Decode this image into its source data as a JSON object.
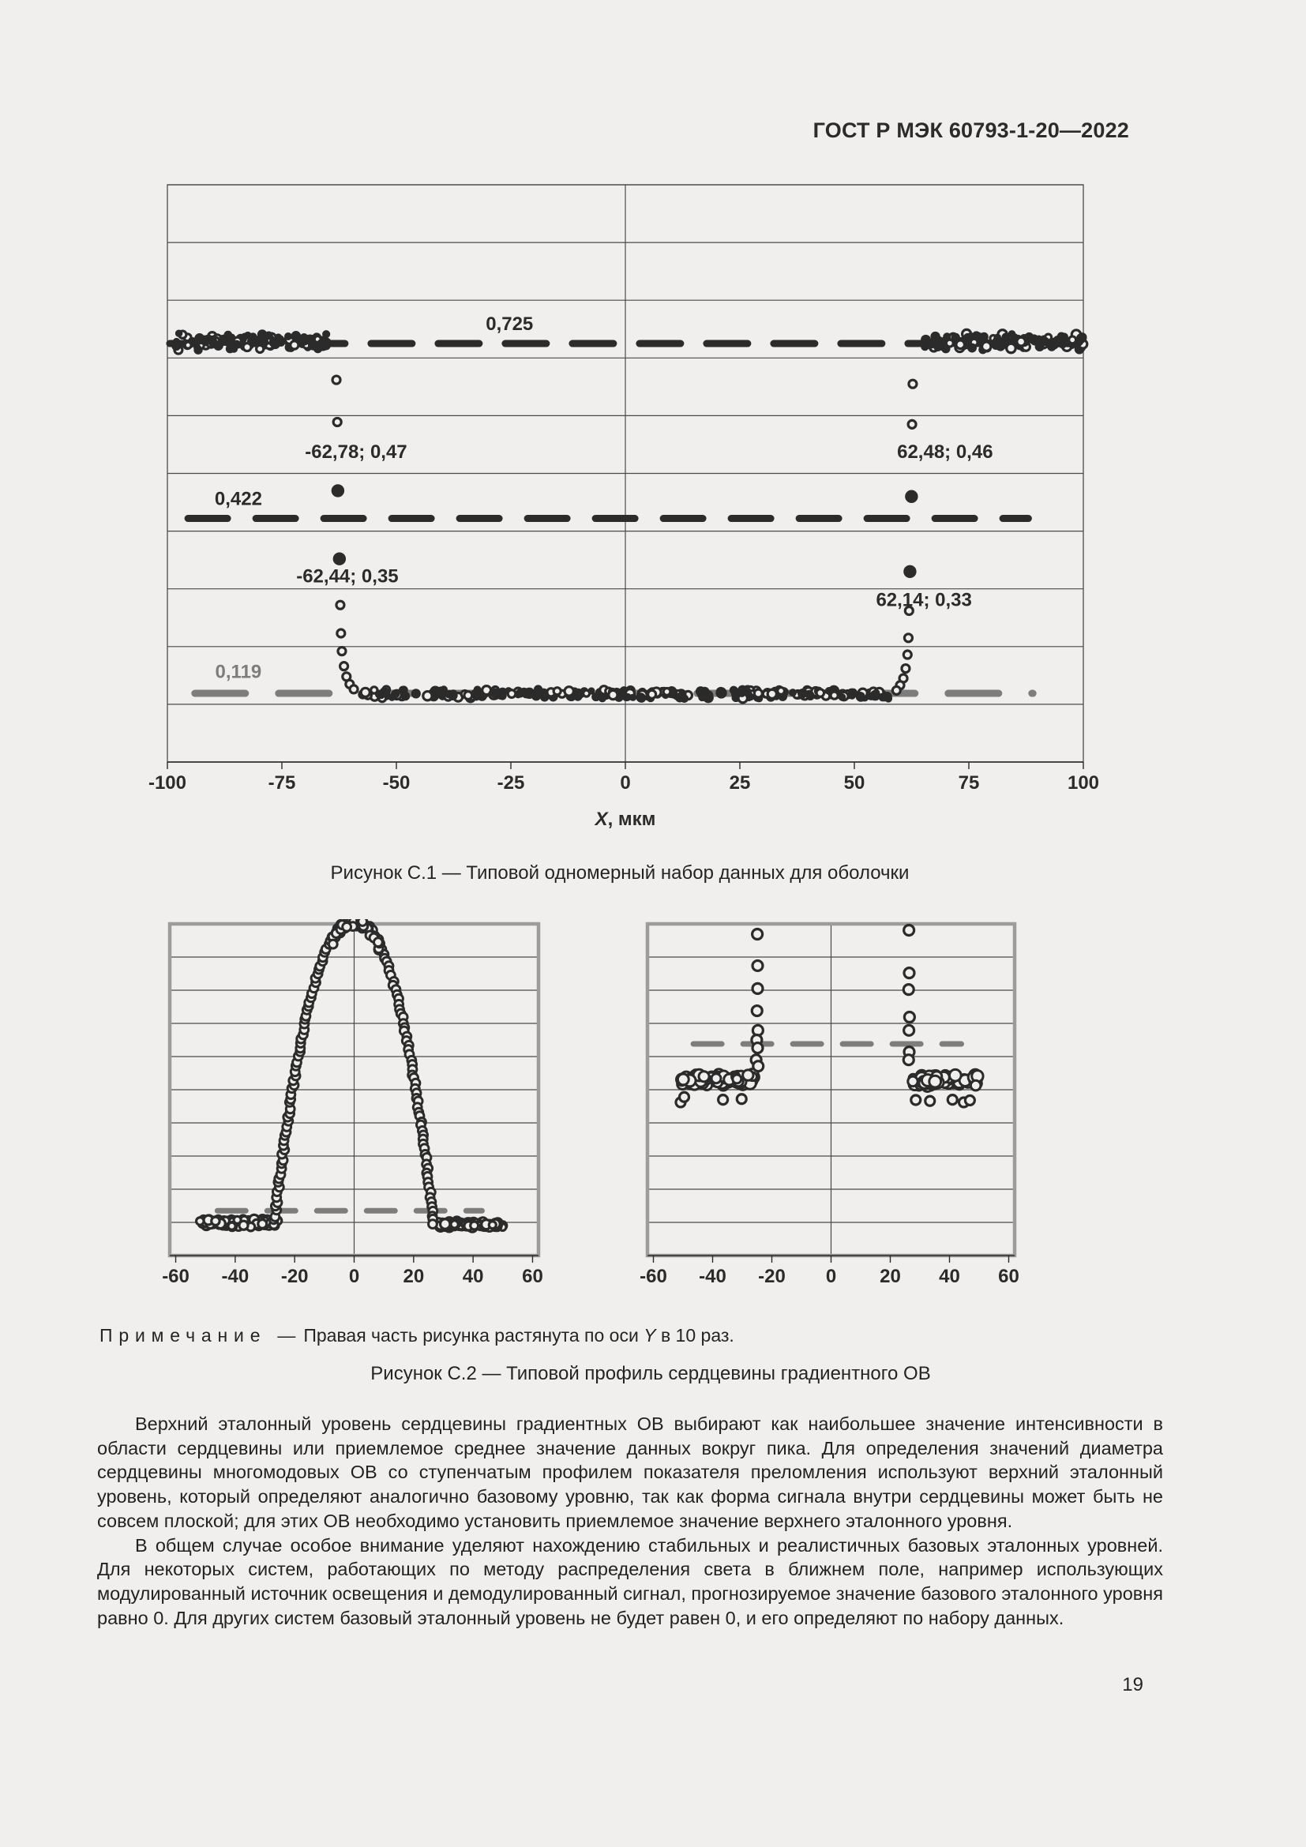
{
  "page": {
    "number": "19"
  },
  "header": {
    "title": "ГОСТ Р МЭК 60793-1-20—2022"
  },
  "figures": {
    "c1": {
      "caption": "Рисунок С.1 — Типовой одномерный набор данных для оболочки"
    },
    "c2": {
      "caption": "Рисунок С.2 — Типовой профиль сердцевины градиентного ОВ",
      "note_label": "Примечание",
      "note_dash": "—",
      "note_before_italic": "Правая часть рисунка растянута по оси ",
      "note_italic": "Y",
      "note_after_italic": " в 10 раз."
    }
  },
  "body": {
    "paragraphs": [
      "Верхний эталонный уровень сердцевины градиентных ОВ выбирают как наибольшее значение интенсивности в области сердцевины или приемлемое среднее значение данных вокруг пика. Для определения значений диаметра сердцевины многомодовых ОВ со ступенчатым профилем показателя преломления используют верхний эталонный уровень, который определяют аналогично базовому уровню, так как форма сигнала внутри сердцевины может быть не совсем плоской; для этих ОВ необходимо установить приемлемое значение верхнего эталонного уровня.",
      "В общем случае особое внимание уделяют нахождению стабильных и реалистичных базовых эталонных уровней. Для некоторых систем, работающих по методу распределения света в ближнем поле, например использующих модулированный источник освещения и демодулированный сигнал, прогнозируемое значение базового эталонного уровня равно 0. Для других систем базовый эталонный уровень не будет равен 0, и его определяют по набору данных."
    ]
  },
  "chart_data": [
    {
      "id": "chart-c1",
      "type": "scatter",
      "title": "Типовой одномерный набор данных для оболочки",
      "xlabel_italic": "X",
      "xlabel_rest": ", мкм",
      "x_range": [
        -100,
        100
      ],
      "y_range": [
        0,
        1
      ],
      "x_ticks": [
        -100,
        -75,
        -50,
        -25,
        0,
        25,
        50,
        75,
        100
      ],
      "y_grid_step": 0.1,
      "v_gridlines": [
        0
      ],
      "grid_on": true,
      "legend": "none",
      "ink": "#2b2b2b",
      "bg": "#f0efed",
      "grid_color": "#4a4a4a",
      "frame": {
        "stroke": "#4a4a4a",
        "width": 1.3
      },
      "margins": {
        "l": 62,
        "t": 6,
        "r": 48,
        "b": 103
      },
      "tick_size": 24,
      "label_size": 24,
      "ref_lines": [
        {
          "y": 0.725,
          "x1": -99.5,
          "x2": 99.5,
          "color": "#2b2b2b",
          "width": 9,
          "dash": [
            52,
            33
          ]
        },
        {
          "y": 0.422,
          "x1": -95.5,
          "x2": 88,
          "color": "#2b2b2b",
          "width": 9,
          "dash": [
            50,
            36
          ]
        },
        {
          "y": 0.119,
          "x1": -94,
          "x2": 89,
          "color": "#7d7d7d",
          "width": 9,
          "dash": [
            64,
            42
          ]
        }
      ],
      "labels": [
        {
          "x": -25.3,
          "y": 0.748,
          "text": "0,725",
          "color": "#2b2b2b"
        },
        {
          "x": -84.5,
          "y": 0.445,
          "text": "0,422",
          "color": "#2b2b2b"
        },
        {
          "x": -84.5,
          "y": 0.146,
          "text": "0,119",
          "color": "#7d7d7d"
        },
        {
          "x": -58.8,
          "y": 0.527,
          "text": "-62,78;  0,47",
          "color": "#2b2b2b"
        },
        {
          "x": 69.8,
          "y": 0.527,
          "text": "62,48;  0,46",
          "color": "#2b2b2b"
        },
        {
          "x": -60.7,
          "y": 0.311,
          "text": "-62,44;  0,35",
          "color": "#2b2b2b"
        },
        {
          "x": 65.2,
          "y": 0.27,
          "text": "62,14;  0,33",
          "color": "#2b2b2b"
        }
      ],
      "clusters": [
        {
          "x1": -100,
          "x2": -65.2,
          "level": 0.728,
          "jitter": 0.015,
          "n": 130,
          "r": 4.6,
          "style": "mixed",
          "seed": 11
        },
        {
          "x1": 65.2,
          "x2": 100,
          "level": 0.728,
          "jitter": 0.015,
          "n": 130,
          "r": 4.6,
          "style": "mixed",
          "seed": 22
        },
        {
          "x1": -57.5,
          "x2": 57.5,
          "level": 0.118,
          "jitter": 0.009,
          "n": 270,
          "r": 4.6,
          "style": "mixed",
          "seed": 33
        }
      ],
      "points": [
        {
          "x": -63.1,
          "y": 0.662,
          "open": true,
          "r": 5
        },
        {
          "x": -62.9,
          "y": 0.589,
          "open": true,
          "r": 5
        },
        {
          "x": -62.78,
          "y": 0.47,
          "open": false,
          "r": 7.5
        },
        {
          "x": -62.44,
          "y": 0.352,
          "open": false,
          "r": 7.5
        },
        {
          "x": -62.25,
          "y": 0.272,
          "open": true,
          "r": 5
        },
        {
          "x": -62.1,
          "y": 0.223,
          "open": true,
          "r": 5
        },
        {
          "x": -61.9,
          "y": 0.192,
          "open": true,
          "r": 5
        },
        {
          "x": -61.45,
          "y": 0.166,
          "open": true,
          "r": 5
        },
        {
          "x": -60.9,
          "y": 0.148,
          "open": true,
          "r": 5
        },
        {
          "x": -60.2,
          "y": 0.135,
          "open": true,
          "r": 5
        },
        {
          "x": -59.3,
          "y": 0.126,
          "open": true,
          "r": 5
        },
        {
          "x": 62.75,
          "y": 0.655,
          "open": true,
          "r": 5
        },
        {
          "x": 62.6,
          "y": 0.585,
          "open": true,
          "r": 5
        },
        {
          "x": 62.48,
          "y": 0.46,
          "open": false,
          "r": 7.5
        },
        {
          "x": 62.14,
          "y": 0.33,
          "open": false,
          "r": 7.5
        },
        {
          "x": 61.95,
          "y": 0.262,
          "open": true,
          "r": 5
        },
        {
          "x": 61.8,
          "y": 0.215,
          "open": true,
          "r": 5
        },
        {
          "x": 61.6,
          "y": 0.186,
          "open": true,
          "r": 5
        },
        {
          "x": 61.2,
          "y": 0.162,
          "open": true,
          "r": 5
        },
        {
          "x": 60.7,
          "y": 0.145,
          "open": true,
          "r": 5
        },
        {
          "x": 60.0,
          "y": 0.133,
          "open": true,
          "r": 5
        },
        {
          "x": 59.2,
          "y": 0.124,
          "open": true,
          "r": 5
        }
      ]
    },
    {
      "id": "chart-c2l",
      "type": "scatter",
      "title": "Типовой профиль сердцевины градиентного ОВ (левая часть)",
      "x_range": [
        -62,
        62
      ],
      "y_range": [
        0,
        1
      ],
      "x_ticks": [
        -60,
        -40,
        -20,
        0,
        20,
        40,
        60
      ],
      "y_grid_step": 0.1,
      "v_gridlines": [
        0
      ],
      "grid_on": true,
      "legend": "none",
      "ink": "#2b2b2b",
      "bg": "#f0efed",
      "grid_color": "#4a4a4a",
      "frame": {
        "stroke": "#9c9c9c",
        "width": 4.5
      },
      "margins": {
        "l": 47,
        "t": 6,
        "r": 26,
        "b": 44
      },
      "tick_size": 24,
      "label_size": 24,
      "ref_lines": [
        {
          "y": 0.135,
          "x1": -46,
          "x2": 43,
          "color": "#7d7d7d",
          "width": 7,
          "dash": [
            36,
            27
          ]
        }
      ],
      "clusters": [
        {
          "x1": -52,
          "x2": -25.5,
          "level": 0.098,
          "jitter": 0.013,
          "n": 120,
          "r": 5,
          "style": "open-dense",
          "seed": 44
        },
        {
          "x1": 28,
          "x2": 50,
          "level": 0.093,
          "jitter": 0.011,
          "n": 100,
          "r": 5,
          "style": "open-dense",
          "seed": 55
        }
      ],
      "bell": {
        "half_width": 26.8,
        "base": 0.092,
        "peak": 1.015,
        "alpha": 2.15,
        "r": 5.4,
        "seed": 66,
        "peak_extra": 50
      },
      "points": []
    },
    {
      "id": "chart-c2r",
      "type": "scatter",
      "title": "Типовой профиль сердцевины градиентного ОВ (правая часть, ось Y растянута в 10 раз)",
      "x_range": [
        -62,
        62
      ],
      "y_range": [
        0,
        1
      ],
      "x_ticks": [
        -60,
        -40,
        -20,
        0,
        20,
        40,
        60
      ],
      "y_grid_step": 0.1,
      "v_gridlines": [
        0
      ],
      "grid_on": true,
      "legend": "none",
      "ink": "#2b2b2b",
      "bg": "#f0efed",
      "grid_color": "#4a4a4a",
      "frame": {
        "stroke": "#9c9c9c",
        "width": 4.5
      },
      "margins": {
        "l": 47,
        "t": 6,
        "r": 28,
        "b": 44
      },
      "tick_size": 24,
      "label_size": 24,
      "ref_lines": [
        {
          "y": 0.638,
          "x1": -46.5,
          "x2": 44,
          "color": "#7d7d7d",
          "width": 7,
          "dash": [
            36,
            27
          ]
        }
      ],
      "clusters": [
        {
          "x1": -51.5,
          "x2": -26,
          "level": 0.53,
          "jitter": 0.022,
          "n": 88,
          "r": 6,
          "style": "open",
          "seed": 77
        },
        {
          "x1": 27.5,
          "x2": 49.5,
          "level": 0.528,
          "jitter": 0.02,
          "n": 78,
          "r": 6,
          "style": "open",
          "seed": 88
        }
      ],
      "points": [
        {
          "x": -24.9,
          "y": 0.969,
          "open": true,
          "r": 6.5
        },
        {
          "x": -24.8,
          "y": 0.874,
          "open": true,
          "r": 6.5
        },
        {
          "x": -24.8,
          "y": 0.805,
          "open": true,
          "r": 6.5
        },
        {
          "x": -25.0,
          "y": 0.738,
          "open": true,
          "r": 6.5
        },
        {
          "x": -24.7,
          "y": 0.679,
          "open": true,
          "r": 6.5
        },
        {
          "x": -25.1,
          "y": 0.65,
          "open": true,
          "r": 6.5
        },
        {
          "x": -24.8,
          "y": 0.626,
          "open": true,
          "r": 6.5
        },
        {
          "x": -25.3,
          "y": 0.59,
          "open": true,
          "r": 6.5
        },
        {
          "x": -24.6,
          "y": 0.571,
          "open": true,
          "r": 6.5
        },
        {
          "x": 26.3,
          "y": 0.981,
          "open": true,
          "r": 6.5
        },
        {
          "x": 26.4,
          "y": 0.852,
          "open": true,
          "r": 6.5
        },
        {
          "x": 26.2,
          "y": 0.802,
          "open": true,
          "r": 6.5
        },
        {
          "x": 26.5,
          "y": 0.719,
          "open": true,
          "r": 6.5
        },
        {
          "x": 26.3,
          "y": 0.679,
          "open": true,
          "r": 6.5
        },
        {
          "x": 26.4,
          "y": 0.614,
          "open": true,
          "r": 6.5
        },
        {
          "x": 26.2,
          "y": 0.59,
          "open": true,
          "r": 6.5
        },
        {
          "x": -50.8,
          "y": 0.462,
          "open": true,
          "r": 6
        },
        {
          "x": -49.6,
          "y": 0.478,
          "open": true,
          "r": 6
        },
        {
          "x": -36.5,
          "y": 0.47,
          "open": true,
          "r": 6
        },
        {
          "x": -30.2,
          "y": 0.472,
          "open": true,
          "r": 6
        },
        {
          "x": 28.6,
          "y": 0.469,
          "open": true,
          "r": 6
        },
        {
          "x": 33.4,
          "y": 0.466,
          "open": true,
          "r": 6
        },
        {
          "x": 41.0,
          "y": 0.47,
          "open": true,
          "r": 6
        },
        {
          "x": 44.8,
          "y": 0.462,
          "open": true,
          "r": 6
        },
        {
          "x": 46.9,
          "y": 0.468,
          "open": true,
          "r": 6
        }
      ]
    }
  ]
}
